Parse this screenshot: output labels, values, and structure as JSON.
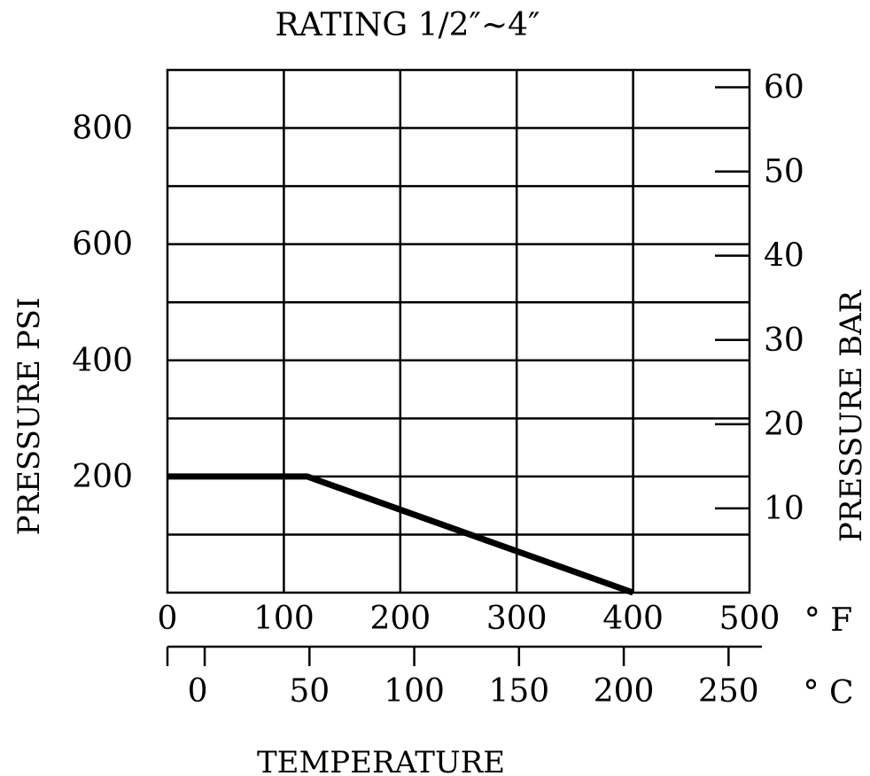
{
  "chart_data": {
    "type": "line",
    "title": "RATING 1/2″~4″",
    "xlabel": "TEMPERATURE",
    "ylabel": "PRESSURE PSI",
    "y2label": "PRESSURE BAR",
    "x_unit_label": "°  F",
    "x2_unit_label": "°  C",
    "xlim": [
      0,
      500
    ],
    "ylim": [
      0,
      900
    ],
    "x_ticks": [
      0,
      100,
      200,
      300,
      400,
      500
    ],
    "y_ticks": [
      200,
      400,
      600,
      800
    ],
    "y_grid": [
      100,
      200,
      300,
      400,
      500,
      600,
      700,
      800
    ],
    "x2_ticks": [
      0,
      50,
      100,
      150,
      200,
      250
    ],
    "y2_ticks": [
      10,
      20,
      30,
      40,
      50,
      60
    ],
    "grid": true,
    "series": [
      {
        "x": [
          0,
          120,
          400
        ],
        "y": [
          200,
          200,
          0
        ]
      }
    ]
  }
}
